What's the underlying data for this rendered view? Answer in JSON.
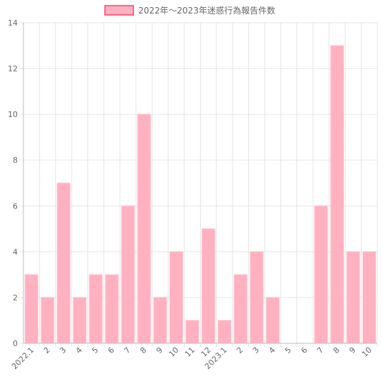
{
  "chart_data": {
    "type": "bar",
    "legend": {
      "label": "2022年～2023年迷惑行為報告件数",
      "position": "top"
    },
    "categories": [
      "2022.1",
      "2",
      "3",
      "4",
      "5",
      "6",
      "7",
      "8",
      "9",
      "10",
      "11",
      "12",
      "2023.1",
      "2",
      "3",
      "4",
      "5",
      "6",
      "7",
      "8",
      "9",
      "10"
    ],
    "series": [
      {
        "name": "2022年～2023年迷惑行為報告件数",
        "values": [
          3,
          2,
          7,
          2,
          3,
          3,
          6,
          10,
          2,
          4,
          1,
          5,
          1,
          3,
          4,
          2,
          0,
          0,
          6,
          13,
          4,
          4
        ],
        "color": "#ffb1c1",
        "border_color": "#ff6384"
      }
    ],
    "ylim": [
      0,
      14
    ],
    "y_ticks": [
      0,
      2,
      4,
      6,
      8,
      10,
      12,
      14
    ],
    "grid": true,
    "xlabel": "",
    "ylabel": ""
  }
}
